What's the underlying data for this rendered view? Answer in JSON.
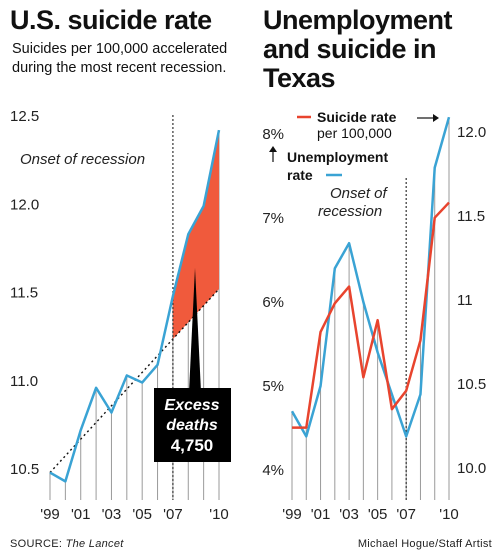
{
  "left_chart": {
    "title": "U.S. suicide rate",
    "subtitle": "Suicides per 100,000 accelerated during the most recent recession."
  },
  "right_chart": {
    "title": "Unemployment and suicide in Texas"
  },
  "footer": {
    "source_label": "SOURCE: ",
    "source_name": "The Lancet",
    "credit": "Michael Hogue/Staff Artist"
  },
  "colors": {
    "suicide_line": "#e8442e",
    "unemployment_line": "#3aa3d4",
    "excess_fill": "#f05a3c",
    "axis_text": "#222222",
    "box_bg": "#000000"
  },
  "chart_data": [
    {
      "type": "line",
      "title": "U.S. suicide rate",
      "subtitle": "Suicides per 100,000 accelerated during the most recent recession.",
      "x": [
        1999,
        2000,
        2001,
        2002,
        2003,
        2004,
        2005,
        2006,
        2007,
        2008,
        2009,
        2010
      ],
      "xtick_labels": [
        "'99",
        "'01",
        "'03",
        "'05",
        "'07",
        "'10"
      ],
      "xtick_values": [
        1999,
        2001,
        2003,
        2005,
        2007,
        2010
      ],
      "ylim": [
        10.4,
        12.5
      ],
      "yticks": [
        10.5,
        11.0,
        11.5,
        12.0,
        12.5
      ],
      "ytick_labels": [
        "10.5",
        "11.0",
        "11.5",
        "12.0",
        "12.5"
      ],
      "series": [
        {
          "values": [
            10.48,
            10.43,
            10.72,
            10.96,
            10.82,
            11.03,
            10.99,
            11.09,
            11.48,
            11.83,
            11.99,
            12.42
          ],
          "color": "#3aa3d4"
        }
      ],
      "trend_line": {
        "x": [
          1999,
          2010
        ],
        "y": [
          10.48,
          11.52
        ],
        "style": "dotted"
      },
      "shaded_region": {
        "label": "Excess deaths",
        "from_x": 2007,
        "color": "#f05a3c"
      },
      "recession_marker": {
        "x": 2007,
        "label": "Onset of recession"
      },
      "annotation_box": {
        "line1": "Excess",
        "line2": "deaths",
        "value": "4,750"
      }
    },
    {
      "type": "line",
      "title": "Unemployment and suicide in Texas",
      "x": [
        1999,
        2000,
        2001,
        2002,
        2003,
        2004,
        2005,
        2006,
        2007,
        2008,
        2009,
        2010
      ],
      "xtick_labels": [
        "'99",
        "'01",
        "'03",
        "'05",
        "'07",
        "'10"
      ],
      "xtick_values": [
        1999,
        2001,
        2003,
        2005,
        2007,
        2010
      ],
      "left_axis": {
        "ylim": [
          3.8,
          8.2
        ],
        "yticks": [
          4,
          5,
          6,
          7,
          8
        ],
        "ytick_labels": [
          "4%",
          "5%",
          "6%",
          "7%",
          "8%"
        ]
      },
      "right_axis": {
        "ylim": [
          9.9,
          12.1
        ],
        "yticks": [
          10.0,
          10.5,
          11.0,
          11.5,
          12.0
        ],
        "ytick_labels": [
          "10.0",
          "10.5",
          "11",
          "11.5",
          "12.0"
        ]
      },
      "series": [
        {
          "name_line1": "Suicide rate",
          "name_line2": "per 100,000",
          "axis": "right",
          "color": "#e8442e",
          "values": [
            10.24,
            10.24,
            10.81,
            10.98,
            11.08,
            10.54,
            10.88,
            10.35,
            10.46,
            10.76,
            11.49,
            11.58
          ]
        },
        {
          "name_line1": "Unemployment",
          "name_line2": "rate",
          "axis": "left",
          "color": "#3aa3d4",
          "values": [
            4.7,
            4.4,
            5.0,
            6.4,
            6.7,
            6.0,
            5.4,
            4.9,
            4.4,
            4.9,
            7.6,
            8.2
          ]
        }
      ],
      "recession_marker": {
        "x": 2007,
        "label_line1": "Onset of",
        "label_line2": "recession"
      }
    }
  ]
}
